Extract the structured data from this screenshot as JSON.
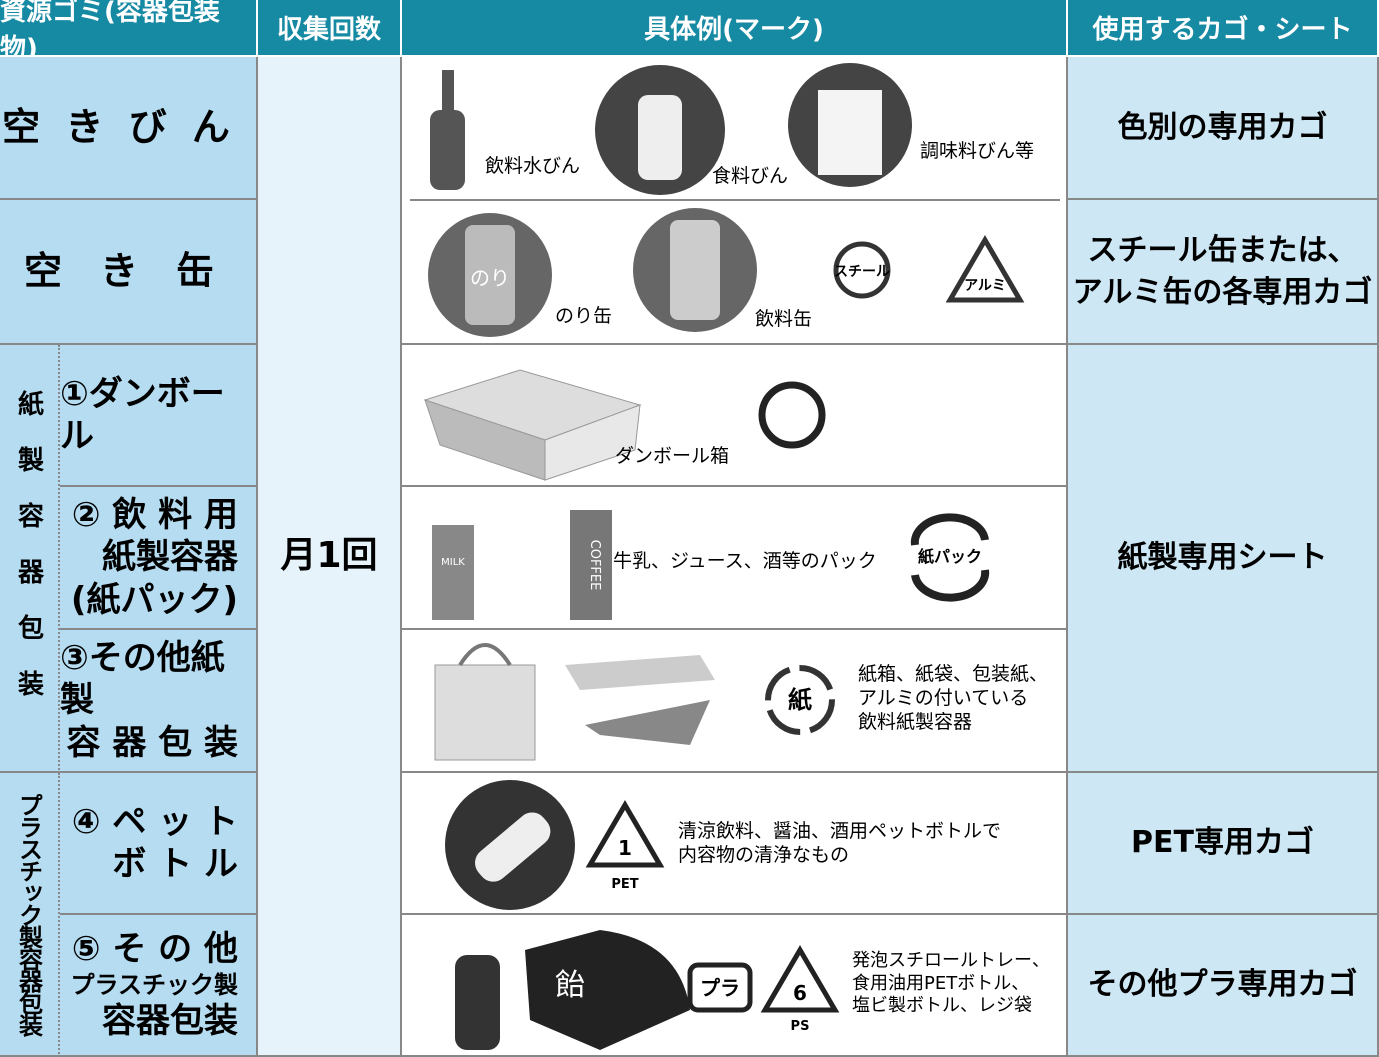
{
  "header": {
    "columns": [
      "資源ゴミ(容器包装物)",
      "収集回数",
      "具体例(マーク)",
      "使用するカゴ・シート"
    ]
  },
  "frequency": "月1回",
  "groups": {
    "paper": "紙製容器包装",
    "plastic": "プラスチック製容器包装"
  },
  "rows": [
    {
      "name": [
        "空 き び ん"
      ],
      "examples": [
        "飲料水びん",
        "食料びん",
        "調味料びん等"
      ],
      "basket": [
        "色別の専用カゴ"
      ]
    },
    {
      "name": [
        "空　き　缶"
      ],
      "examples": [
        "のり缶",
        "飲料缶"
      ],
      "marks": [
        "のり",
        "スチール",
        "アルミ"
      ],
      "basket": [
        "スチール缶または、",
        "アルミ缶の各専用カゴ"
      ]
    },
    {
      "name": [
        "①ダンボール"
      ],
      "examples": [
        "ダンボール箱"
      ],
      "basket": [
        "紙製専用シート"
      ]
    },
    {
      "name": [
        "② 飲 料 用",
        "紙製容器",
        "(紙パック)"
      ],
      "examples": [
        "牛乳、ジュース、酒等のパック"
      ],
      "marks": [
        "MILK",
        "COFFEE",
        "紙パック"
      ]
    },
    {
      "name": [
        "③その他紙製",
        "容 器 包 装"
      ],
      "examples": [
        "紙箱、紙袋、包装紙、",
        "アルミの付いている",
        "飲料紙製容器"
      ],
      "marks": [
        "紙"
      ]
    },
    {
      "name": [
        "④ ペ ッ ト",
        "ボ ト ル"
      ],
      "examples": [
        "清涼飲料、醤油、酒用ペットボトルで",
        "内容物の清浄なもの"
      ],
      "marks": [
        "1",
        "PET"
      ],
      "basket": [
        "PET専用カゴ"
      ]
    },
    {
      "name": [
        "⑤ そ の 他",
        "プラスチック製",
        "容器包装"
      ],
      "examples": [
        "発泡スチロールトレー、",
        "食用油用PETボトル、",
        "塩ビ製ボトル、レジ袋"
      ],
      "marks": [
        "飴",
        "プラ",
        "6",
        "PS"
      ],
      "basket": [
        "その他プラ専用カゴ"
      ]
    }
  ]
}
